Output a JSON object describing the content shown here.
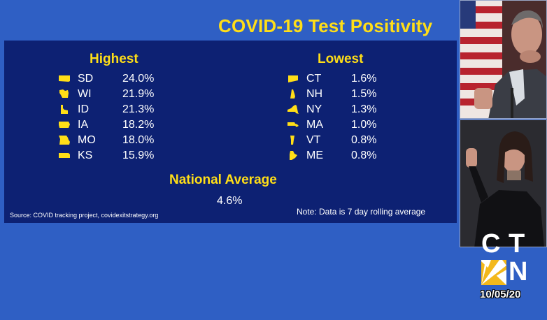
{
  "slide": {
    "title": "COVID-19 Test Positivity",
    "highest_heading": "Highest",
    "lowest_heading": "Lowest",
    "highest": [
      {
        "state": "SD",
        "value": "24.0%",
        "icon": "south-dakota-icon"
      },
      {
        "state": "WI",
        "value": "21.9%",
        "icon": "wisconsin-icon"
      },
      {
        "state": "ID",
        "value": "21.3%",
        "icon": "idaho-icon"
      },
      {
        "state": "IA",
        "value": "18.2%",
        "icon": "iowa-icon"
      },
      {
        "state": "MO",
        "value": "18.0%",
        "icon": "missouri-icon"
      },
      {
        "state": "KS",
        "value": "15.9%",
        "icon": "kansas-icon"
      }
    ],
    "lowest": [
      {
        "state": "CT",
        "value": "1.6%",
        "icon": "connecticut-icon"
      },
      {
        "state": "NH",
        "value": "1.5%",
        "icon": "new-hampshire-icon"
      },
      {
        "state": "NY",
        "value": "1.3%",
        "icon": "new-york-icon"
      },
      {
        "state": "MA",
        "value": "1.0%",
        "icon": "massachusetts-icon"
      },
      {
        "state": "VT",
        "value": "0.8%",
        "icon": "vermont-icon"
      },
      {
        "state": "ME",
        "value": "0.8%",
        "icon": "maine-icon"
      }
    ],
    "national_average_heading": "National Average",
    "national_average_value": "4.6%",
    "source": "Source: COVID tracking project, covidexitstrategy.org",
    "note": "Note: Data is 7 day rolling average"
  },
  "broadcast": {
    "logo_letters": [
      "C",
      "T",
      "N"
    ],
    "date": "10/05/20"
  },
  "colors": {
    "background": "#2f5fc4",
    "panel": "#0d2173",
    "accent_yellow": "#ffde17",
    "text": "#ffffff"
  }
}
